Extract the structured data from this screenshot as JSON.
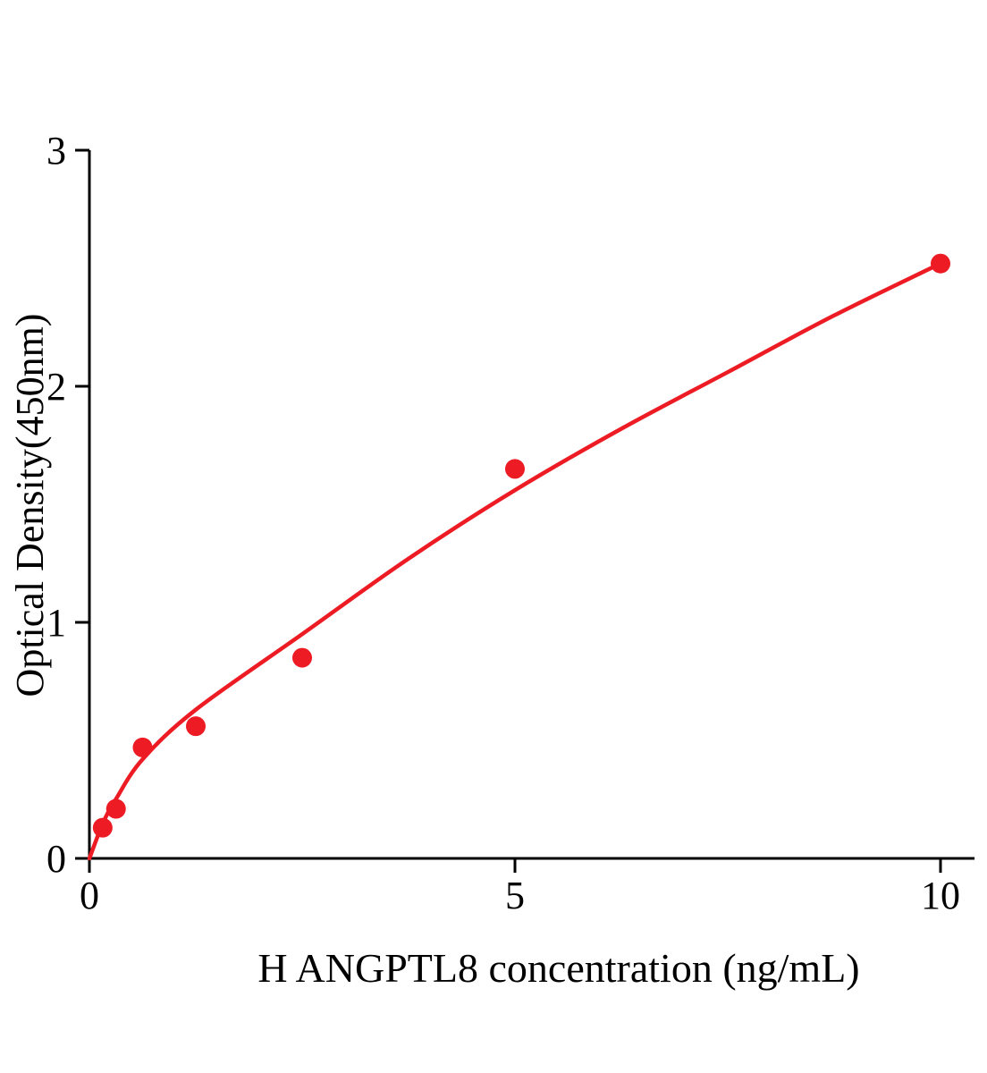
{
  "chart_data": {
    "type": "scatter",
    "title": "",
    "xlabel": "H ANGPTL8 concentration (ng/mL)",
    "ylabel": "Optical Density(450nm)",
    "xlim": [
      0,
      10.4
    ],
    "ylim": [
      0,
      3
    ],
    "x_ticks": [
      0,
      5,
      10
    ],
    "y_ticks": [
      0,
      1,
      2,
      3
    ],
    "grid": false,
    "legend": "none",
    "point_color": "#ed1c24",
    "curve_color": "#ed1c24",
    "axis_color": "#000000",
    "series": [
      {
        "name": "standard-points",
        "x": [
          0.156,
          0.3125,
          0.625,
          1.25,
          2.5,
          5,
          10
        ],
        "y": [
          0.13,
          0.21,
          0.47,
          0.56,
          0.85,
          1.65,
          2.52
        ]
      }
    ],
    "fit_curve": {
      "name": "fitted-standard-curve",
      "x": [
        0,
        0.16,
        0.31,
        0.625,
        1.25,
        2.5,
        3.75,
        5,
        6.25,
        7.5,
        8.75,
        10
      ],
      "y": [
        0.0,
        0.15,
        0.25,
        0.42,
        0.63,
        0.95,
        1.27,
        1.56,
        1.82,
        2.06,
        2.3,
        2.52
      ]
    }
  }
}
